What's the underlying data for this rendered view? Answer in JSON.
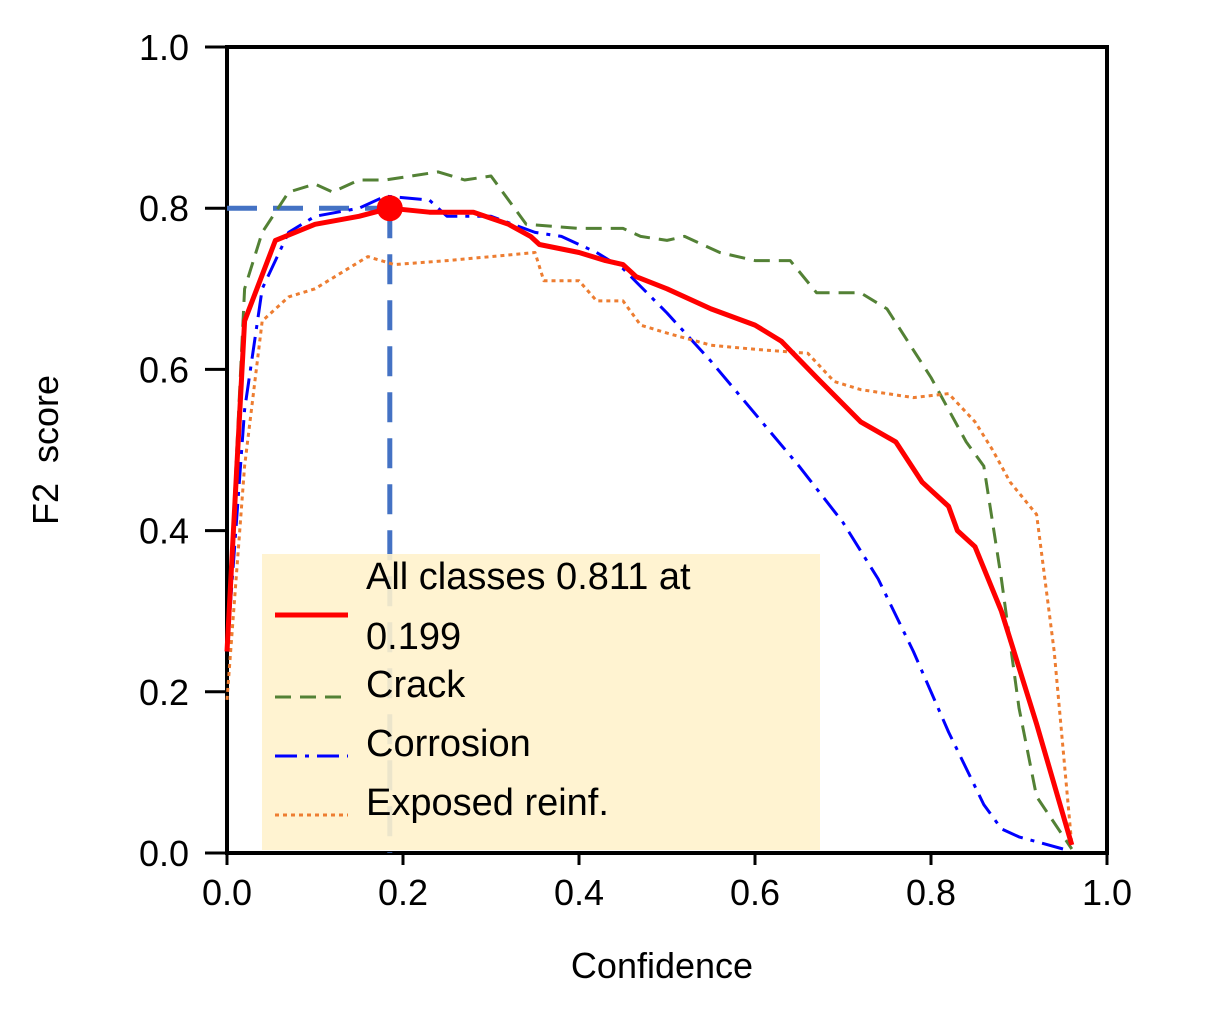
{
  "chart_data": {
    "type": "line",
    "xlabel": "Confidence",
    "ylabel": "F2  score",
    "xlim": [
      0.0,
      1.0
    ],
    "ylim": [
      0.0,
      1.0
    ],
    "xticks": [
      "0.0",
      "0.2",
      "0.4",
      "0.6",
      "0.8",
      "1.0"
    ],
    "yticks": [
      "0.0",
      "0.2",
      "0.4",
      "0.6",
      "0.8",
      "1.0"
    ],
    "grid": false,
    "legend_position": "bottom-left",
    "highlight": {
      "x": 0.185,
      "y": 0.8,
      "color": "#ff0000",
      "guide_color": "#4472c4"
    },
    "series": [
      {
        "name": "All classes 0.811 at 0.199",
        "legend_lines": [
          "All classes 0.811 at",
          "0.199"
        ],
        "color": "#ff0000",
        "style": "solid",
        "x": [
          0.0,
          0.02,
          0.055,
          0.1,
          0.15,
          0.185,
          0.23,
          0.28,
          0.32,
          0.345,
          0.355,
          0.4,
          0.43,
          0.45,
          0.465,
          0.5,
          0.55,
          0.6,
          0.63,
          0.67,
          0.72,
          0.76,
          0.79,
          0.82,
          0.83,
          0.85,
          0.88,
          0.92,
          0.96
        ],
        "y": [
          0.25,
          0.66,
          0.76,
          0.78,
          0.79,
          0.8,
          0.795,
          0.795,
          0.78,
          0.765,
          0.755,
          0.745,
          0.735,
          0.73,
          0.715,
          0.7,
          0.675,
          0.655,
          0.635,
          0.59,
          0.535,
          0.51,
          0.46,
          0.43,
          0.4,
          0.38,
          0.3,
          0.16,
          0.01
        ]
      },
      {
        "name": "Crack",
        "legend_lines": [
          "Crack"
        ],
        "color": "#538135",
        "style": "dashed",
        "x": [
          0.0,
          0.02,
          0.04,
          0.07,
          0.1,
          0.12,
          0.15,
          0.18,
          0.24,
          0.27,
          0.3,
          0.34,
          0.4,
          0.45,
          0.47,
          0.5,
          0.52,
          0.56,
          0.6,
          0.64,
          0.67,
          0.7,
          0.72,
          0.75,
          0.8,
          0.84,
          0.86,
          0.88,
          0.9,
          0.92,
          0.96
        ],
        "y": [
          0.25,
          0.7,
          0.77,
          0.82,
          0.83,
          0.82,
          0.835,
          0.835,
          0.845,
          0.835,
          0.84,
          0.78,
          0.775,
          0.775,
          0.765,
          0.76,
          0.765,
          0.745,
          0.735,
          0.735,
          0.695,
          0.695,
          0.695,
          0.675,
          0.59,
          0.51,
          0.48,
          0.34,
          0.18,
          0.07,
          0.005
        ]
      },
      {
        "name": "Corrosion",
        "legend_lines": [
          "Corrosion"
        ],
        "color": "#0000ff",
        "style": "dashdot",
        "x": [
          0.0,
          0.02,
          0.04,
          0.07,
          0.1,
          0.15,
          0.18,
          0.23,
          0.25,
          0.3,
          0.35,
          0.38,
          0.42,
          0.45,
          0.5,
          0.55,
          0.6,
          0.65,
          0.7,
          0.74,
          0.78,
          0.82,
          0.86,
          0.88,
          0.9,
          0.95
        ],
        "y": [
          0.25,
          0.55,
          0.7,
          0.77,
          0.79,
          0.8,
          0.815,
          0.81,
          0.79,
          0.79,
          0.77,
          0.765,
          0.745,
          0.725,
          0.67,
          0.61,
          0.545,
          0.48,
          0.41,
          0.34,
          0.25,
          0.15,
          0.06,
          0.03,
          0.02,
          0.005
        ]
      },
      {
        "name": "Exposed reinf.",
        "legend_lines": [
          "Exposed reinf."
        ],
        "color": "#ed7d31",
        "style": "dotted",
        "x": [
          0.0,
          0.02,
          0.04,
          0.07,
          0.1,
          0.13,
          0.16,
          0.19,
          0.25,
          0.3,
          0.35,
          0.36,
          0.4,
          0.42,
          0.45,
          0.47,
          0.5,
          0.55,
          0.6,
          0.66,
          0.69,
          0.72,
          0.75,
          0.78,
          0.82,
          0.85,
          0.87,
          0.89,
          0.92,
          0.94,
          0.96
        ],
        "y": [
          0.19,
          0.48,
          0.66,
          0.69,
          0.7,
          0.72,
          0.74,
          0.73,
          0.735,
          0.74,
          0.745,
          0.71,
          0.71,
          0.685,
          0.685,
          0.655,
          0.645,
          0.63,
          0.625,
          0.62,
          0.585,
          0.575,
          0.57,
          0.565,
          0.57,
          0.535,
          0.5,
          0.46,
          0.42,
          0.25,
          0.01
        ]
      }
    ]
  }
}
